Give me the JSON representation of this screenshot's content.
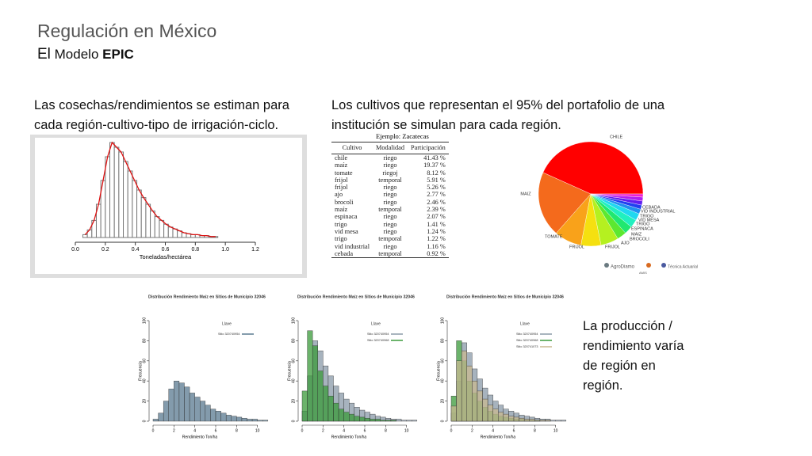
{
  "header": {
    "title": "Regulación en México",
    "subtitle_parts": [
      "El",
      "Modelo",
      "EPIC"
    ]
  },
  "left_text": "Las cosechas/rendimientos se estiman para cada región-cultivo-tipo de irrigación-ciclo.",
  "right_text": "Los cultivos que representan el 95% del portafolio de una institución se simulan para cada región.",
  "bottom_text": "La producción / rendimiento varía de región en región.",
  "histogram": {
    "type": "histogram",
    "xlabel": "Toneladas/hectárea",
    "color": "#777777",
    "curve_color": "#dd1111",
    "xlim": [
      0,
      1.2
    ],
    "xticks": [
      {
        "value": 0,
        "label": "0.0"
      },
      0.2,
      0.4,
      0.6,
      0.8,
      {
        "value": 1,
        "label": "1.0"
      },
      1.2
    ],
    "bins": [
      0.05,
      0.08,
      0.11,
      0.14,
      0.17,
      0.2,
      0.23,
      0.26,
      0.29,
      0.32,
      0.35,
      0.38,
      0.41,
      0.44,
      0.47,
      0.5,
      0.53,
      0.56,
      0.59,
      0.62,
      0.65,
      0.68,
      0.71,
      0.74,
      0.77,
      0.8,
      0.83,
      0.86,
      0.89,
      0.92,
      0.95
    ],
    "counts": [
      3,
      8,
      18,
      35,
      60,
      85,
      100,
      95,
      90,
      80,
      70,
      60,
      50,
      42,
      35,
      28,
      22,
      18,
      14,
      11,
      9,
      7,
      5,
      4,
      3,
      3,
      2,
      2,
      1,
      1
    ]
  },
  "table": {
    "caption": "Ejemplo: Zacatecas",
    "columns": [
      "Cultivo",
      "Modalidad",
      "Participación"
    ],
    "rows": [
      [
        "chile",
        "riego",
        "41.43 %"
      ],
      [
        "maíz",
        "riego",
        "19.37 %"
      ],
      [
        "tomate",
        "riegoj",
        "8.12 %"
      ],
      [
        "frijol",
        "temporal",
        "5.91 %"
      ],
      [
        "frijol",
        "riego",
        "5.26 %"
      ],
      [
        "ajo",
        "riego",
        "2.77 %"
      ],
      [
        "brocoli",
        "riego",
        "2.46 %"
      ],
      [
        "maíz",
        "temporal",
        "2.39 %"
      ],
      [
        "espinaca",
        "riego",
        "2.07 %"
      ],
      [
        "trigo",
        "riego",
        "1.41 %"
      ],
      [
        "vid mesa",
        "riego",
        "1.24 %"
      ],
      [
        "trigo",
        "temporal",
        "1.22 %"
      ],
      [
        "vid industrial",
        "riego",
        "1.16 %"
      ],
      [
        "cebada",
        "temporal",
        "0.92 %"
      ]
    ]
  },
  "pie": {
    "type": "pie",
    "labels": [
      "CHILE",
      "MAIZ",
      "TOMATE",
      "FRIJOL",
      "FRIJOL",
      "AJO",
      "BROCOLI",
      "MAIZ",
      "ESPINACA",
      "TRIGO",
      "VID MESA",
      "TRIGO",
      "VID INDUSTRIAL",
      "CEBADA"
    ],
    "values": [
      41.43,
      19.37,
      8.12,
      5.91,
      5.26,
      2.77,
      2.46,
      2.39,
      2.07,
      1.41,
      1.24,
      1.22,
      1.16,
      0.92
    ],
    "colors": [
      "#ff0000",
      "#f46a1c",
      "#f9a21a",
      "#f5e010",
      "#b5f020",
      "#5ce830",
      "#20e870",
      "#20f0c0",
      "#20d8f0",
      "#2090f0",
      "#2040f0",
      "#6020f0",
      "#b020f0",
      "#f020d0"
    ]
  },
  "logos": [
    "AgroDiamo",
    "AMIS",
    "Técnica Actuarial"
  ],
  "small_charts": [
    {
      "title": "Distribución Rendimiento Maíz en Sitios de Municipio 32046",
      "legend_title": "Llave",
      "xlabel": "Rendimiento Ton/ha",
      "ylabel": "Frecuencia",
      "xlim": [
        0,
        12
      ],
      "ylim": [
        0,
        100
      ],
      "xticks": [
        0,
        2,
        4,
        6,
        8,
        10
      ],
      "yticks": [
        0,
        20,
        40,
        60,
        80,
        100
      ],
      "bins": [
        0,
        0.5,
        1,
        1.5,
        2,
        2.5,
        3,
        3.5,
        4,
        4.5,
        5,
        5.5,
        6,
        6.5,
        7,
        7.5,
        8,
        8.5,
        9,
        9.5,
        10,
        10.5,
        11
      ],
      "series": [
        {
          "name": "Sitio 320740954",
          "color": "#5a7a90",
          "counts": [
            2,
            8,
            20,
            32,
            40,
            38,
            34,
            28,
            24,
            20,
            16,
            12,
            10,
            8,
            6,
            5,
            4,
            3,
            2,
            2,
            1,
            1
          ]
        }
      ]
    },
    {
      "title": "Distribución Rendimiento Maíz en Sitios de Municipio 32046",
      "legend_title": "Llave",
      "xlabel": "Rendimiento Ton/ha",
      "ylabel": "Frecuencia",
      "xlim": [
        0,
        12
      ],
      "ylim": [
        0,
        100
      ],
      "xticks": [
        0,
        2,
        4,
        6,
        8,
        10
      ],
      "yticks": [
        0,
        20,
        40,
        60,
        80,
        100
      ],
      "bins": [
        0,
        0.5,
        1,
        1.5,
        2,
        2.5,
        3,
        3.5,
        4,
        4.5,
        5,
        5.5,
        6,
        6.5,
        7,
        7.5,
        8,
        8.5,
        9,
        9.5,
        10,
        10.5,
        11
      ],
      "series": [
        {
          "name": "Sitio 320740954",
          "color": "#8a9aa8",
          "counts": [
            10,
            45,
            80,
            70,
            55,
            45,
            35,
            28,
            22,
            18,
            14,
            11,
            9,
            7,
            5,
            4,
            3,
            2,
            2,
            1,
            1,
            1
          ]
        },
        {
          "name": "Sitio 320740968",
          "color": "#3a9a3a",
          "counts": [
            30,
            90,
            75,
            50,
            35,
            25,
            18,
            12,
            9,
            7,
            5,
            4,
            3,
            2,
            2,
            1,
            1,
            1,
            0,
            0,
            0,
            0
          ]
        }
      ]
    },
    {
      "title": "Distribución Rendimiento Maíz en Sitios de Municipio 32046",
      "legend_title": "Llave",
      "xlabel": "Rendimiento Ton/ha",
      "ylabel": "Frecuencia",
      "xlim": [
        0,
        12
      ],
      "ylim": [
        0,
        100
      ],
      "xticks": [
        0,
        2,
        4,
        6,
        8,
        10
      ],
      "yticks": [
        0,
        20,
        40,
        60,
        80,
        100
      ],
      "bins": [
        0,
        0.5,
        1,
        1.5,
        2,
        2.5,
        3,
        3.5,
        4,
        4.5,
        5,
        5.5,
        6,
        6.5,
        7,
        7.5,
        8,
        8.5,
        9,
        9.5,
        10,
        10.5,
        11
      ],
      "series": [
        {
          "name": "Sitio 320740954",
          "color": "#8a9aa8",
          "counts": [
            8,
            40,
            78,
            68,
            52,
            42,
            33,
            26,
            20,
            16,
            12,
            10,
            8,
            6,
            5,
            4,
            3,
            2,
            2,
            1,
            1,
            1
          ]
        },
        {
          "name": "Sitio 320740968",
          "color": "#3a9a3a",
          "counts": [
            25,
            80,
            60,
            40,
            28,
            20,
            14,
            10,
            7,
            5,
            4,
            3,
            2,
            2,
            1,
            1,
            1,
            0,
            0,
            0,
            0,
            0
          ]
        },
        {
          "name": "Sitio 320741073",
          "color": "#c8b890",
          "counts": [
            15,
            60,
            70,
            55,
            40,
            30,
            22,
            16,
            12,
            9,
            7,
            5,
            4,
            3,
            2,
            2,
            1,
            1,
            1,
            0,
            0,
            0
          ]
        }
      ]
    }
  ]
}
